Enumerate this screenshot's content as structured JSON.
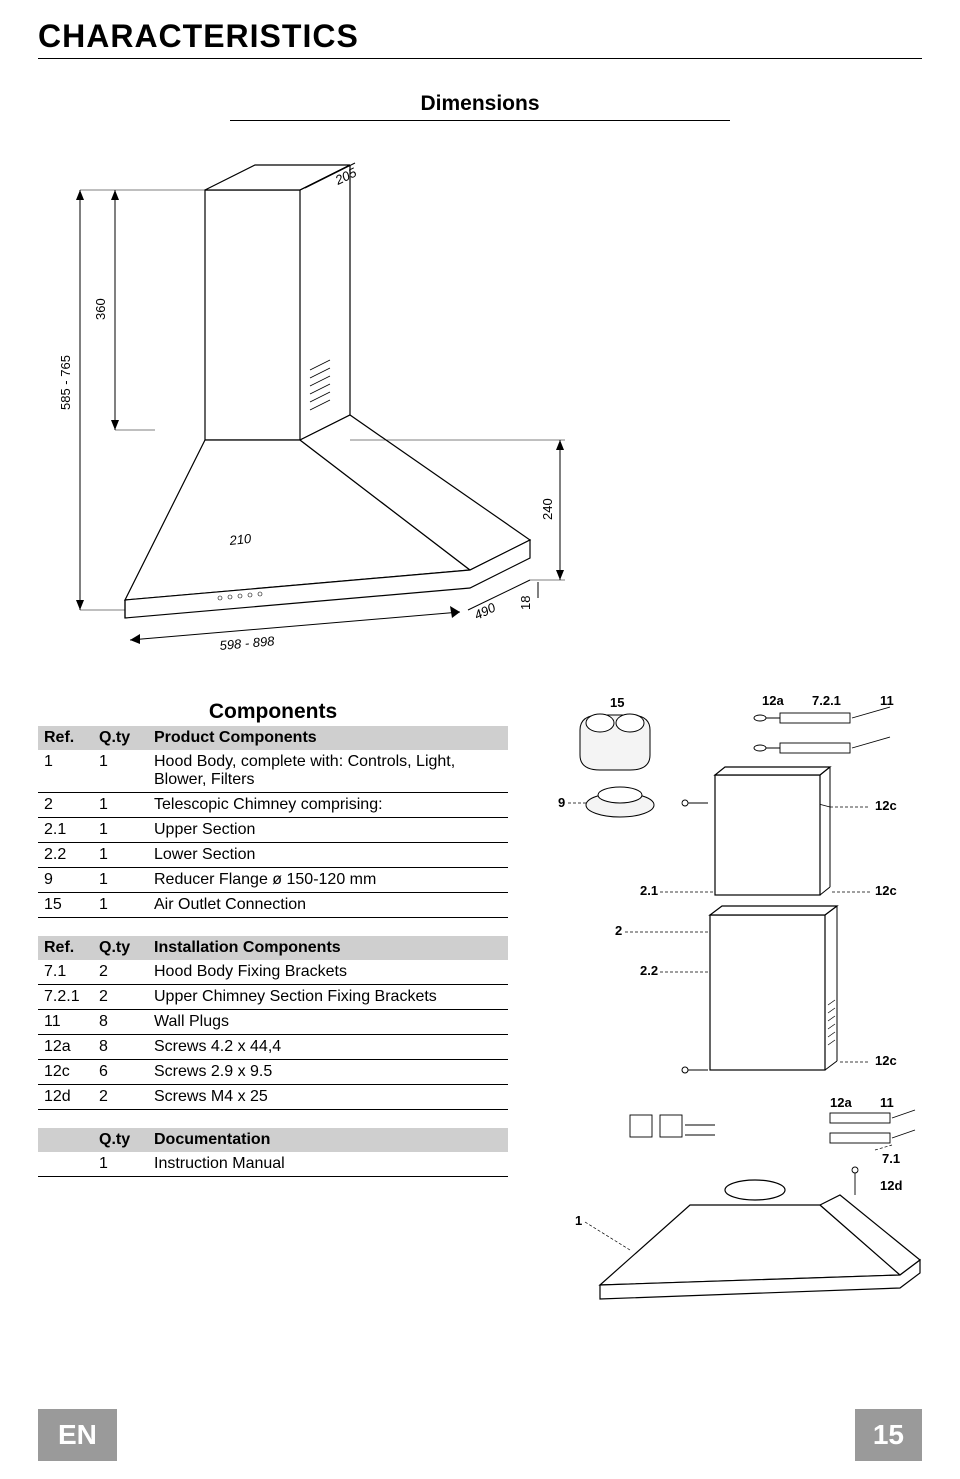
{
  "page_title": "CHARACTERISTICS",
  "dimensions_label": "Dimensions",
  "dimension_drawing": {
    "height_range": "585 - 765",
    "chimney_height": "360",
    "top_depth": "205",
    "body_depth": "210",
    "hood_depth": "490",
    "width_range": "598 - 898",
    "hood_height": "240",
    "lip": "18",
    "line_color": "#000000",
    "bg": "#ffffff"
  },
  "components_heading": "Components",
  "table_headers": {
    "ref": "Ref.",
    "qty": "Q.ty",
    "product": "Product Components",
    "install": "Installation Components",
    "doc": "Documentation"
  },
  "product_components": [
    {
      "ref": "1",
      "qty": "1",
      "desc": "Hood Body, complete with: Controls, Light, Blower, Filters"
    },
    {
      "ref": "2",
      "qty": "1",
      "desc": "Telescopic Chimney comprising:"
    },
    {
      "ref": "2.1",
      "qty": "1",
      "desc": "Upper Section"
    },
    {
      "ref": "2.2",
      "qty": "1",
      "desc": "Lower Section"
    },
    {
      "ref": "9",
      "qty": "1",
      "desc": "Reducer Flange ø 150-120 mm"
    },
    {
      "ref": "15",
      "qty": "1",
      "desc": "Air Outlet Connection"
    }
  ],
  "installation_components": [
    {
      "ref": "7.1",
      "qty": "2",
      "desc": "Hood Body Fixing Brackets"
    },
    {
      "ref": "7.2.1",
      "qty": "2",
      "desc": "Upper Chimney Section Fixing Brackets"
    },
    {
      "ref": "11",
      "qty": "8",
      "desc": "Wall Plugs"
    },
    {
      "ref": "12a",
      "qty": "8",
      "desc": "Screws 4.2 x 44,4"
    },
    {
      "ref": "12c",
      "qty": "6",
      "desc": "Screws 2.9 x 9.5"
    },
    {
      "ref": "12d",
      "qty": "2",
      "desc": "Screws M4 x 25"
    }
  ],
  "documentation": [
    {
      "ref": "",
      "qty": "1",
      "desc": "Instruction Manual"
    }
  ],
  "exploded_labels": {
    "l15": "15",
    "l12a": "12a",
    "l721": "7.2.1",
    "l11": "11",
    "l9": "9",
    "l12c_top": "12c",
    "l21": "2.1",
    "l12c_mid": "12c",
    "l2": "2",
    "l22": "2.2",
    "l12c_low": "12c",
    "l12a_low": "12a",
    "l11_low": "11",
    "l71": "7.1",
    "l1": "1",
    "l12d": "12d"
  },
  "footer": {
    "lang": "EN",
    "page": "15"
  },
  "colors": {
    "grey": "#9a9a9a",
    "header_grey": "#cfcfcf",
    "black": "#000000",
    "white": "#ffffff"
  }
}
